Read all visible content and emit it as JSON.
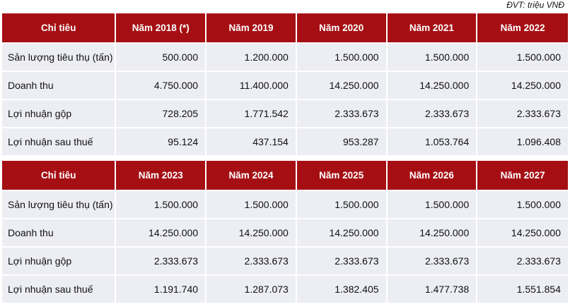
{
  "unit_note": "ĐVT: triệu VNĐ",
  "tables": [
    {
      "headers": [
        "Chỉ tiêu",
        "Năm 2018 (*)",
        "Năm 2019",
        "Năm 2020",
        "Năm 2021",
        "Năm 2022"
      ],
      "rows": [
        {
          "label": "Sản lượng tiêu thụ (tấn)",
          "values": [
            "500.000",
            "1.200.000",
            "1.500.000",
            "1.500.000",
            "1.500.000"
          ]
        },
        {
          "label": "Doanh thu",
          "values": [
            "4.750.000",
            "11.400.000",
            "14.250.000",
            "14.250.000",
            "14.250.000"
          ]
        },
        {
          "label": "Lợi nhuận gộp",
          "values": [
            "728.205",
            "1.771.542",
            "2.333.673",
            "2.333.673",
            "2.333.673"
          ]
        },
        {
          "label": "Lợi nhuận sau thuế",
          "values": [
            "95.124",
            "437.154",
            "953.287",
            "1.053.764",
            "1.096.408"
          ]
        }
      ]
    },
    {
      "headers": [
        "Chỉ tiêu",
        "Năm 2023",
        "Năm 2024",
        "Năm 2025",
        "Năm 2026",
        "Năm 2027"
      ],
      "rows": [
        {
          "label": "Sản lượng tiêu thụ (tấn)",
          "values": [
            "1.500.000",
            "1.500.000",
            "1.500.000",
            "1.500.000",
            "1.500.000"
          ]
        },
        {
          "label": "Doanh thu",
          "values": [
            "14.250.000",
            "14.250.000",
            "14.250.000",
            "14.250.000",
            "14.250.000"
          ]
        },
        {
          "label": "Lợi nhuận gộp",
          "values": [
            "2.333.673",
            "2.333.673",
            "2.333.673",
            "2.333.673",
            "2.333.673"
          ]
        },
        {
          "label": "Lợi nhuận sau thuế",
          "values": [
            "1.191.740",
            "1.287.073",
            "1.382.405",
            "1.477.738",
            "1.551.854"
          ]
        }
      ]
    }
  ]
}
